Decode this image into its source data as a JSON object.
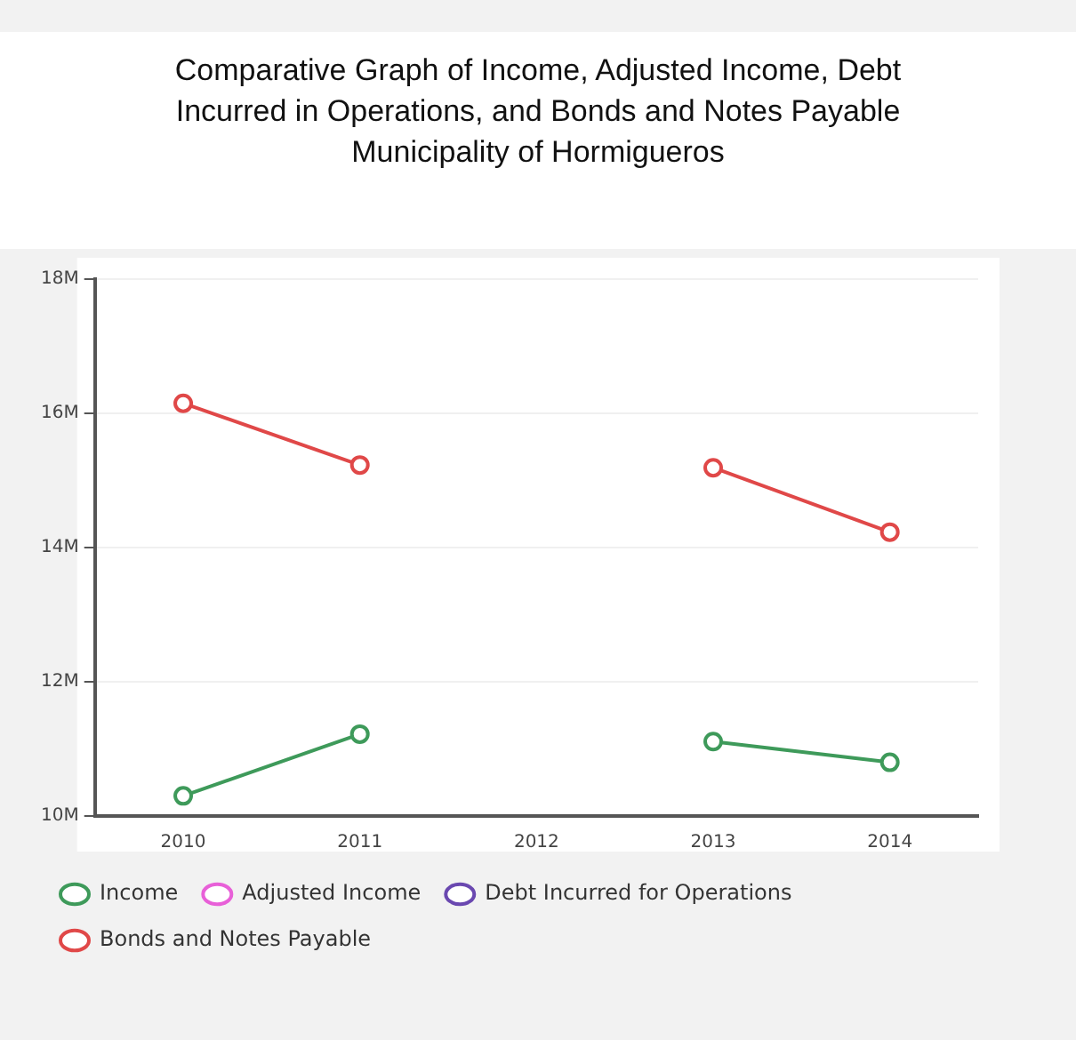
{
  "chart_data": {
    "type": "line",
    "title": "Comparative Graph of Income, Adjusted Income, Debt Incurred in Operations, and Bonds and Notes Payable",
    "subtitle": "Municipality of Hormigueros",
    "categories": [
      "2010",
      "2011",
      "2012",
      "2013",
      "2014"
    ],
    "series": [
      {
        "name": "Income",
        "color": "#3e9a5a",
        "values": [
          10300000,
          11220000,
          null,
          11110000,
          10800000
        ]
      },
      {
        "name": "Adjusted Income",
        "color": "#e860d8",
        "values": [
          null,
          null,
          null,
          null,
          null
        ]
      },
      {
        "name": "Debt Incurred for Operations",
        "color": "#6a48b0",
        "values": [
          null,
          null,
          null,
          null,
          null
        ]
      },
      {
        "name": "Bonds and Notes Payable",
        "color": "#e04848",
        "values": [
          16150000,
          15230000,
          null,
          15190000,
          14230000
        ]
      }
    ],
    "ylim": [
      10000000,
      18000000
    ],
    "yticks": [
      {
        "value": 10000000,
        "label": "10M"
      },
      {
        "value": 12000000,
        "label": "12M"
      },
      {
        "value": 14000000,
        "label": "14M"
      },
      {
        "value": 16000000,
        "label": "16M"
      },
      {
        "value": 18000000,
        "label": "18M"
      }
    ],
    "grid": "y",
    "legend": "bottom",
    "marker": "circle",
    "line_style": "solid"
  }
}
